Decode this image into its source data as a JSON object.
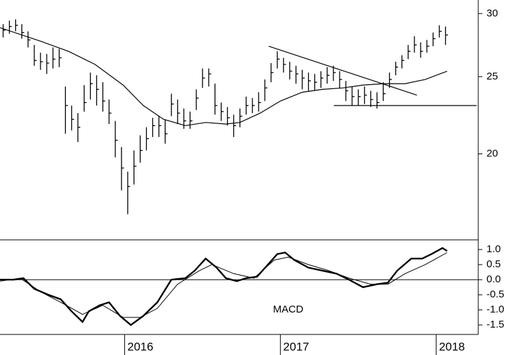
{
  "chart_data": [
    {
      "type": "ohlc",
      "x": [
        2015.22,
        2015.26,
        2015.3,
        2015.34,
        2015.38,
        2015.42,
        2015.46,
        2015.5,
        2015.54,
        2015.58,
        2015.62,
        2015.66,
        2015.7,
        2015.74,
        2015.78,
        2015.82,
        2015.86,
        2015.9,
        2015.94,
        2015.98,
        2016.02,
        2016.06,
        2016.1,
        2016.14,
        2016.18,
        2016.22,
        2016.26,
        2016.3,
        2016.34,
        2016.38,
        2016.42,
        2016.46,
        2016.5,
        2016.54,
        2016.58,
        2016.62,
        2016.66,
        2016.7,
        2016.74,
        2016.78,
        2016.82,
        2016.86,
        2016.9,
        2016.94,
        2016.98,
        2017.02,
        2017.06,
        2017.1,
        2017.14,
        2017.18,
        2017.22,
        2017.26,
        2017.3,
        2017.34,
        2017.38,
        2017.42,
        2017.46,
        2017.5,
        2017.54,
        2017.58,
        2017.62,
        2017.66,
        2017.7,
        2017.74,
        2017.78,
        2017.82,
        2017.86,
        2017.9,
        2017.94,
        2017.98,
        2018.02,
        2018.06
      ],
      "high": [
        29.1,
        29.4,
        29.5,
        29.1,
        28.5,
        27.4,
        26.8,
        26.7,
        27.2,
        27.1,
        24.3,
        23.0,
        22.5,
        24.4,
        25.3,
        25.1,
        24.6,
        23.4,
        22.0,
        20.4,
        19.0,
        20.2,
        21.1,
        21.6,
        22.2,
        22.3,
        22.1,
        23.8,
        23.4,
        22.8,
        22.6,
        24.1,
        25.6,
        25.6,
        24.5,
        23.2,
        22.9,
        22.4,
        22.8,
        23.6,
        23.5,
        23.9,
        24.8,
        26.0,
        26.9,
        26.4,
        26.1,
        25.8,
        25.5,
        25.3,
        25.2,
        25.4,
        25.7,
        25.8,
        25.4,
        24.7,
        24.3,
        24.1,
        24.3,
        24.0,
        23.9,
        24.6,
        25.3,
        26.1,
        26.6,
        27.4,
        28.1,
        27.6,
        27.8,
        28.4,
        29.0,
        28.9
      ],
      "low": [
        28.0,
        28.3,
        28.5,
        27.9,
        27.2,
        25.8,
        25.5,
        25.2,
        25.6,
        25.7,
        21.2,
        21.4,
        20.7,
        22.6,
        23.4,
        23.0,
        22.6,
        21.8,
        19.8,
        18.0,
        16.8,
        18.3,
        19.5,
        20.2,
        21.0,
        21.0,
        20.6,
        22.3,
        21.8,
        21.5,
        21.5,
        22.7,
        24.2,
        24.3,
        22.4,
        22.0,
        21.7,
        21.0,
        21.6,
        22.4,
        22.5,
        22.6,
        23.3,
        24.6,
        25.6,
        25.3,
        24.8,
        24.5,
        24.1,
        24.0,
        24.0,
        24.2,
        24.5,
        24.7,
        24.2,
        23.3,
        23.0,
        23.0,
        23.1,
        22.9,
        22.8,
        23.3,
        24.2,
        25.1,
        25.6,
        26.3,
        26.8,
        26.4,
        26.8,
        27.3,
        28.0,
        27.4
      ],
      "close": [
        28.6,
        28.9,
        29.0,
        28.4,
        27.8,
        26.2,
        26.1,
        26.0,
        26.3,
        26.4,
        23.0,
        22.1,
        21.6,
        23.2,
        24.5,
        24.1,
        23.3,
        22.5,
        20.8,
        19.2,
        18.2,
        19.3,
        20.2,
        20.9,
        21.7,
        21.7,
        21.2,
        23.1,
        22.5,
        22.0,
        22.0,
        23.5,
        24.9,
        25.2,
        23.0,
        22.6,
        22.2,
        21.7,
        22.3,
        23.0,
        23.0,
        23.2,
        24.2,
        25.3,
        26.3,
        25.9,
        25.4,
        25.2,
        24.9,
        24.7,
        24.6,
        24.9,
        25.1,
        25.3,
        24.8,
        24.0,
        23.6,
        23.6,
        23.7,
        23.4,
        23.2,
        23.8,
        24.8,
        25.7,
        26.2,
        26.9,
        27.4,
        26.9,
        27.3,
        27.9,
        28.5,
        28.2
      ],
      "color": "#000000",
      "lines": [
        {
          "x": [
            2015.2,
            2015.46,
            2015.64,
            2015.81,
            2015.99,
            2016.12,
            2016.25,
            2016.39,
            2016.52,
            2016.65,
            2016.74,
            2016.87,
            2017.0,
            2017.14,
            2017.27,
            2017.4,
            2017.53,
            2017.66,
            2017.8,
            2017.93,
            2018.07
          ],
          "y": [
            28.8,
            27.7,
            26.9,
            25.9,
            24.4,
            23.0,
            22.1,
            21.7,
            21.9,
            21.8,
            21.9,
            22.5,
            23.3,
            23.9,
            24.1,
            24.2,
            24.4,
            24.5,
            24.5,
            24.8,
            25.4
          ]
        },
        {
          "x": [
            2016.925,
            2017.876
          ],
          "y": [
            27.3,
            23.7
          ]
        },
        {
          "x": [
            2017.343,
            2018.26
          ],
          "y": [
            23.0,
            23.0
          ]
        }
      ],
      "xlim": [
        2015.2,
        2018.27
      ],
      "ylim": [
        15.6,
        31.2
      ],
      "yticks": [
        20,
        25,
        30
      ],
      "log": true
    },
    {
      "type": "line",
      "annotation": "MACD",
      "series": [
        {
          "color": "#000000",
          "width": 2.4,
          "x": [
            2015.2,
            2015.29,
            2015.35,
            2015.42,
            2015.51,
            2015.59,
            2015.66,
            2015.73,
            2015.77,
            2015.84,
            2015.9,
            2015.97,
            2016.04,
            2016.12,
            2016.21,
            2016.3,
            2016.39,
            2016.45,
            2016.52,
            2016.59,
            2016.65,
            2016.72,
            2016.78,
            2016.85,
            2016.92,
            2016.98,
            2017.03,
            2017.09,
            2017.18,
            2017.27,
            2017.36,
            2017.44,
            2017.53,
            2017.62,
            2017.69,
            2017.75,
            2017.84,
            2017.91,
            2017.97,
            2018.04,
            2018.07
          ],
          "values": [
            0,
            0.0,
            0.05,
            -0.3,
            -0.5,
            -0.65,
            -1.05,
            -1.4,
            -1.05,
            -0.85,
            -0.75,
            -1.2,
            -1.5,
            -1.2,
            -0.75,
            0,
            0.05,
            0.3,
            0.7,
            0.4,
            0.05,
            -0.05,
            0.05,
            0.1,
            0.5,
            0.85,
            0.9,
            0.65,
            0.4,
            0.3,
            0.2,
            0,
            -0.25,
            -0.15,
            -0.1,
            0.3,
            0.7,
            0.7,
            0.85,
            1.05,
            0.95
          ]
        },
        {
          "color": "#000000",
          "width": 1,
          "x": [
            2015.2,
            2015.33,
            2015.46,
            2015.59,
            2015.73,
            2015.86,
            2015.99,
            2016.1,
            2016.21,
            2016.34,
            2016.48,
            2016.56,
            2016.7,
            2016.83,
            2016.96,
            2017.05,
            2017.18,
            2017.31,
            2017.44,
            2017.58,
            2017.69,
            2017.8,
            2017.93,
            2018.07
          ],
          "values": [
            -0.05,
            0.05,
            -0.4,
            -0.75,
            -1.15,
            -0.85,
            -1.25,
            -1.25,
            -0.95,
            -0.15,
            0.3,
            0.5,
            0.2,
            0.05,
            0.65,
            0.75,
            0.5,
            0.3,
            0.05,
            -0.15,
            -0.15,
            0.2,
            0.5,
            0.9
          ]
        }
      ],
      "zero_line": true,
      "xlim": [
        2015.2,
        2018.27
      ],
      "xticks": [
        2016,
        2017,
        2018
      ],
      "ylim": [
        -1.86,
        1.32
      ],
      "yticks": [
        {
          "value": 1,
          "label": "1.0"
        },
        0.5,
        {
          "value": 0,
          "label": "0.0"
        },
        -0.5,
        {
          "value": -1,
          "label": "-1.0"
        },
        -1.5
      ]
    }
  ]
}
